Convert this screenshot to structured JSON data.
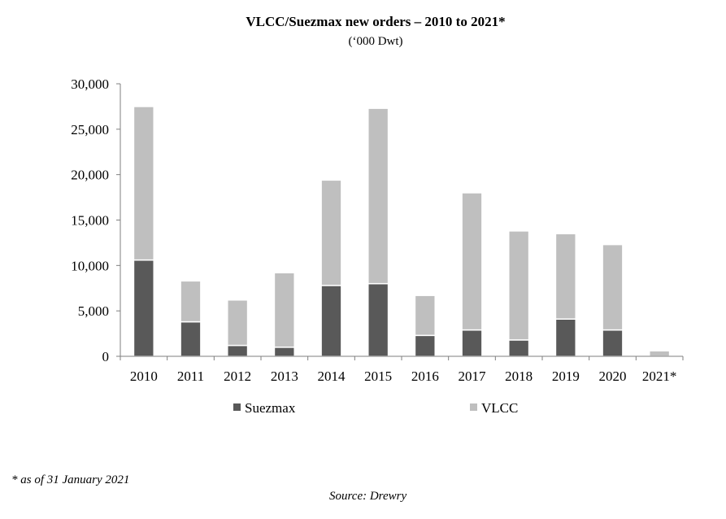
{
  "chart_data": {
    "type": "bar",
    "stacked": true,
    "title": "VLCC/Suezmax new orders – 2010 to 2021*",
    "subtitle": "(‘000 Dwt)",
    "xlabel": "",
    "ylabel": "",
    "ylim": [
      0,
      30000
    ],
    "yticks": [
      0,
      5000,
      10000,
      15000,
      20000,
      25000,
      30000
    ],
    "ytick_labels": [
      "0",
      "5,000",
      "10,000",
      "15,000",
      "20,000",
      "25,000",
      "30,000"
    ],
    "categories": [
      "2010",
      "2011",
      "2012",
      "2013",
      "2014",
      "2015",
      "2016",
      "2017",
      "2018",
      "2019",
      "2020",
      "2021*"
    ],
    "series": [
      {
        "name": "Suezmax",
        "color": "#595959",
        "values": [
          10600,
          3800,
          1200,
          1000,
          7800,
          8000,
          2300,
          2900,
          1800,
          4100,
          2900,
          0
        ]
      },
      {
        "name": "VLCC",
        "color": "#bfbfbf",
        "values": [
          16900,
          4500,
          5000,
          8200,
          11600,
          19300,
          4400,
          15100,
          12000,
          9400,
          9400,
          600
        ]
      }
    ],
    "grid": false,
    "legend": "bottom"
  },
  "footnote": "* as of 31 January 2021",
  "source": "Source: Drewry"
}
